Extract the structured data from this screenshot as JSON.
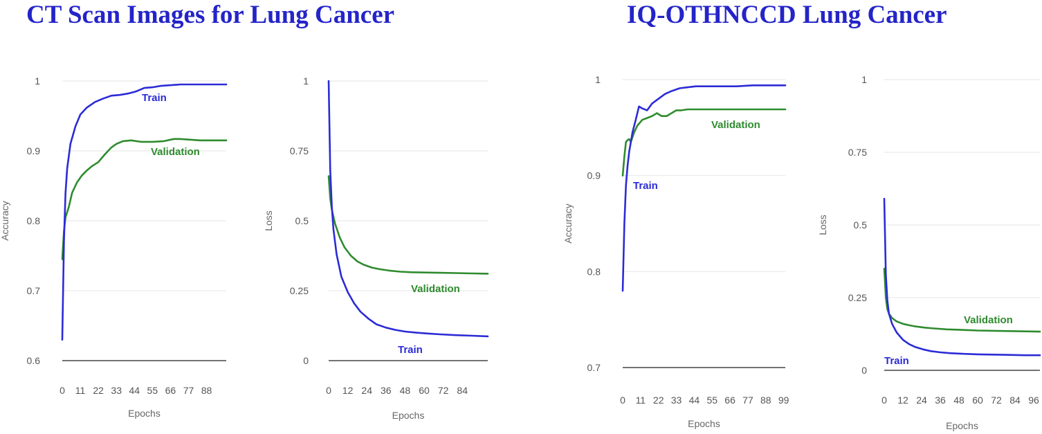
{
  "titles": {
    "left": "CT Scan Images for Lung Cancer",
    "right": "IQ-OTHNCCD Lung Cancer"
  },
  "colors": {
    "train": "#2b2bd6",
    "validation": "#2e8b2e",
    "title": "#2424c8"
  },
  "chart_data": [
    {
      "type": "line",
      "dataset": "CT Scan Images for Lung Cancer",
      "ylabel": "Accuracy",
      "xlabel": "Epochs",
      "ylim": [
        0.6,
        1.0
      ],
      "yticks": [
        0.6,
        0.7,
        0.8,
        0.9,
        1
      ],
      "ytick_labels": [
        "0.6",
        "0.7",
        "0.8",
        "0.9",
        "1"
      ],
      "xlim": [
        0,
        100
      ],
      "xticks": [
        0,
        11,
        22,
        33,
        44,
        55,
        66,
        77,
        88
      ],
      "grid": true,
      "series": [
        {
          "name": "Train",
          "color": "#2b2bd6",
          "x": [
            0,
            1,
            2,
            3,
            5,
            8,
            11,
            15,
            20,
            25,
            30,
            35,
            40,
            45,
            50,
            55,
            60,
            66,
            72,
            80,
            90,
            100
          ],
          "y": [
            0.63,
            0.77,
            0.84,
            0.875,
            0.91,
            0.935,
            0.952,
            0.962,
            0.97,
            0.975,
            0.979,
            0.98,
            0.982,
            0.985,
            0.99,
            0.991,
            0.993,
            0.994,
            0.995,
            0.995,
            0.995,
            0.995
          ]
        },
        {
          "name": "Validation",
          "color": "#2e8b2e",
          "x": [
            0,
            1,
            2,
            4,
            6,
            9,
            12,
            15,
            18,
            22,
            26,
            30,
            33,
            37,
            42,
            48,
            55,
            62,
            68,
            72,
            78,
            84,
            90,
            100
          ],
          "y": [
            0.745,
            0.785,
            0.805,
            0.82,
            0.84,
            0.855,
            0.865,
            0.872,
            0.878,
            0.884,
            0.895,
            0.905,
            0.91,
            0.914,
            0.915,
            0.913,
            0.913,
            0.914,
            0.917,
            0.917,
            0.916,
            0.915,
            0.915,
            0.915
          ]
        }
      ]
    },
    {
      "type": "line",
      "dataset": "CT Scan Images for Lung Cancer",
      "ylabel": "Loss",
      "xlabel": "Epochs",
      "ylim": [
        0,
        1
      ],
      "yticks": [
        0,
        0.25,
        0.5,
        0.75,
        1
      ],
      "ytick_labels": [
        "0",
        "0.25",
        "0.5",
        "0.75",
        "1"
      ],
      "xlim": [
        0,
        100
      ],
      "xticks": [
        0,
        12,
        24,
        36,
        48,
        60,
        72,
        84
      ],
      "grid": true,
      "series": [
        {
          "name": "Train",
          "color": "#2b2bd6",
          "x": [
            0,
            1,
            2,
            3,
            5,
            8,
            12,
            16,
            20,
            25,
            30,
            36,
            42,
            48,
            55,
            62,
            70,
            80,
            90,
            100
          ],
          "y": [
            1.0,
            0.68,
            0.55,
            0.47,
            0.38,
            0.3,
            0.245,
            0.205,
            0.175,
            0.15,
            0.13,
            0.118,
            0.11,
            0.104,
            0.1,
            0.097,
            0.094,
            0.091,
            0.089,
            0.087
          ]
        },
        {
          "name": "Validation",
          "color": "#2e8b2e",
          "x": [
            0,
            1,
            2,
            4,
            7,
            10,
            14,
            18,
            22,
            27,
            32,
            38,
            45,
            52,
            60,
            70,
            80,
            90,
            100
          ],
          "y": [
            0.66,
            0.58,
            0.54,
            0.49,
            0.44,
            0.405,
            0.375,
            0.355,
            0.343,
            0.333,
            0.327,
            0.322,
            0.318,
            0.316,
            0.315,
            0.314,
            0.313,
            0.312,
            0.311
          ]
        }
      ]
    },
    {
      "type": "line",
      "dataset": "IQ-OTHNCCD Lung Cancer",
      "ylabel": "Accuracy",
      "xlabel": "Epochs",
      "ylim": [
        0.7,
        1.0
      ],
      "yticks": [
        0.7,
        0.8,
        0.9,
        1
      ],
      "ytick_labels": [
        "0.7",
        "0.8",
        "0.9",
        "1"
      ],
      "xlim": [
        0,
        100
      ],
      "xticks": [
        0,
        11,
        22,
        33,
        44,
        55,
        66,
        77,
        88,
        99
      ],
      "grid": true,
      "series": [
        {
          "name": "Train",
          "color": "#2b2bd6",
          "x": [
            0,
            1,
            2,
            3,
            4,
            5,
            6,
            8,
            10,
            12,
            15,
            18,
            22,
            26,
            30,
            35,
            40,
            45,
            50,
            55,
            60,
            70,
            80,
            90,
            100
          ],
          "y": [
            0.78,
            0.85,
            0.89,
            0.91,
            0.925,
            0.935,
            0.945,
            0.958,
            0.972,
            0.97,
            0.968,
            0.975,
            0.98,
            0.985,
            0.988,
            0.991,
            0.992,
            0.993,
            0.993,
            0.993,
            0.993,
            0.993,
            0.994,
            0.994,
            0.994
          ]
        },
        {
          "name": "Validation",
          "color": "#2e8b2e",
          "x": [
            0,
            1,
            2,
            3,
            4,
            5,
            7,
            9,
            12,
            15,
            18,
            21,
            24,
            27,
            30,
            33,
            36,
            40,
            44,
            50,
            60,
            70,
            80,
            90,
            100
          ],
          "y": [
            0.9,
            0.92,
            0.935,
            0.937,
            0.938,
            0.935,
            0.945,
            0.952,
            0.958,
            0.96,
            0.962,
            0.965,
            0.962,
            0.962,
            0.965,
            0.968,
            0.968,
            0.969,
            0.969,
            0.969,
            0.969,
            0.969,
            0.969,
            0.969,
            0.969
          ]
        }
      ]
    },
    {
      "type": "line",
      "dataset": "IQ-OTHNCCD Lung Cancer",
      "ylabel": "Loss",
      "xlabel": "Epochs",
      "ylim": [
        0,
        1
      ],
      "yticks": [
        0,
        0.25,
        0.5,
        0.75,
        1
      ],
      "ytick_labels": [
        "0",
        "0.25",
        "0.5",
        "0.75",
        "1"
      ],
      "xlim": [
        0,
        100
      ],
      "xticks": [
        0,
        12,
        24,
        36,
        48,
        60,
        72,
        84,
        96
      ],
      "grid": true,
      "series": [
        {
          "name": "Train",
          "color": "#2b2bd6",
          "x": [
            0,
            1,
            2,
            3,
            5,
            8,
            12,
            16,
            20,
            25,
            30,
            36,
            42,
            50,
            60,
            70,
            80,
            90,
            100
          ],
          "y": [
            0.59,
            0.33,
            0.24,
            0.195,
            0.16,
            0.13,
            0.105,
            0.09,
            0.08,
            0.072,
            0.066,
            0.062,
            0.059,
            0.057,
            0.055,
            0.054,
            0.053,
            0.052,
            0.052
          ]
        },
        {
          "name": "Validation",
          "color": "#2e8b2e",
          "x": [
            0,
            1,
            2,
            3,
            5,
            8,
            12,
            16,
            20,
            26,
            32,
            40,
            50,
            60,
            70,
            80,
            90,
            100
          ],
          "y": [
            0.35,
            0.25,
            0.21,
            0.195,
            0.18,
            0.168,
            0.16,
            0.155,
            0.151,
            0.147,
            0.144,
            0.141,
            0.139,
            0.137,
            0.136,
            0.135,
            0.134,
            0.133
          ]
        }
      ]
    }
  ]
}
